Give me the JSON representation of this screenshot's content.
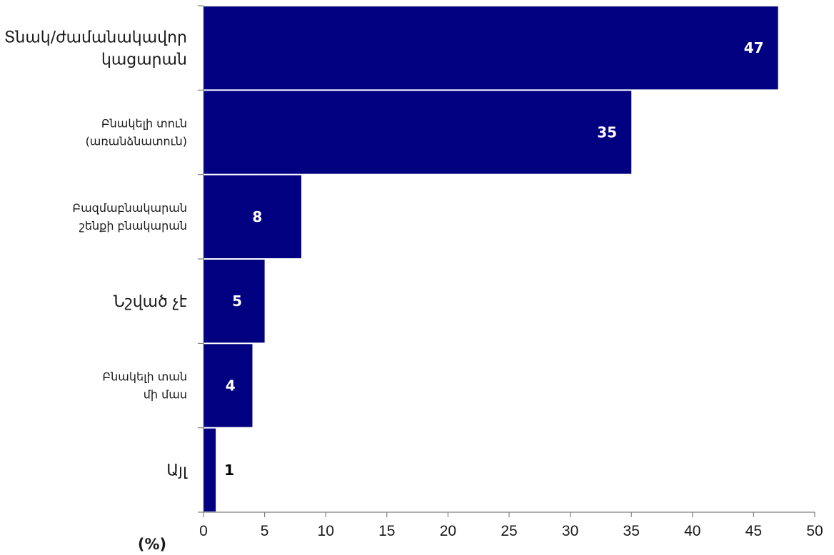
{
  "chart_data": {
    "type": "bar",
    "orientation": "horizontal",
    "categories": [
      [
        "Այլ"
      ],
      [
        "Բնակելի տան",
        "մի մաս"
      ],
      [
        "Նշված չէ"
      ],
      [
        "Բազմաբնակարան",
        "շենքի բնակարան"
      ],
      [
        "Բնակելի տուն",
        "(առանձնատուն)"
      ],
      [
        "Տնակ/ժամանակավոր",
        "կացարան"
      ]
    ],
    "values": [
      1,
      4,
      5,
      8,
      35,
      47
    ],
    "data_labels": [
      "1",
      "4",
      "5",
      "8",
      "35",
      "47"
    ],
    "xlim": [
      0,
      50
    ],
    "x_ticks": [
      0,
      5,
      10,
      15,
      20,
      25,
      30,
      35,
      40,
      45,
      50
    ],
    "unit_label": "(%)",
    "grid": false,
    "colors": {
      "bar": "#000080",
      "label_inside": "#ffffff",
      "label_outside": "#000000"
    }
  }
}
